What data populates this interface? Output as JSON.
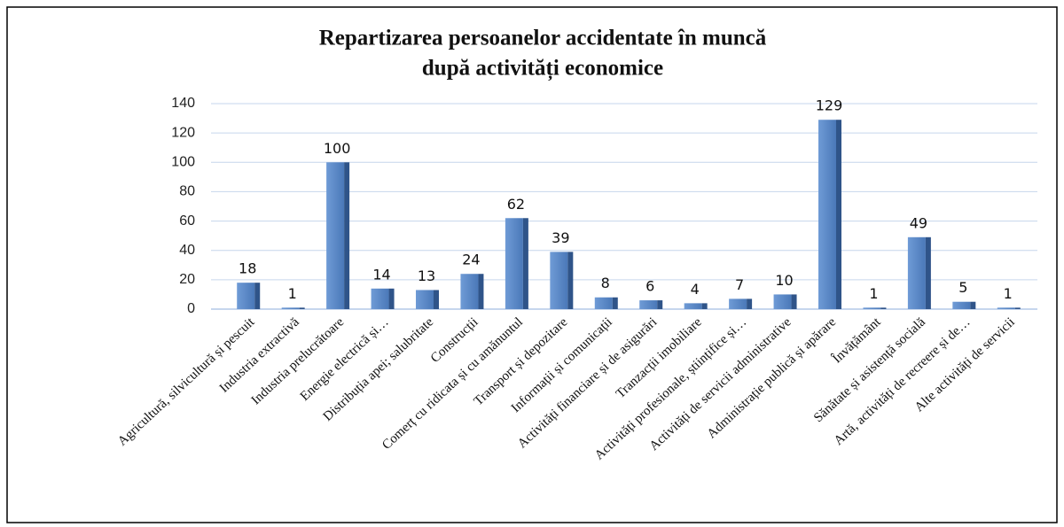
{
  "chart_data": {
    "type": "bar",
    "title": [
      "Repartizarea persoanelor accidentate în muncă",
      "după activități economice"
    ],
    "categories": [
      "Agricultură, silvicultură și pescuit",
      "Industria extractivă",
      "Industria prelucrătoare",
      "Energie electrică și…",
      "Distribuția apei; salubritate",
      "Construcții",
      "Comerț cu ridicata și cu amănuntul",
      "Transport și depozitare",
      "Informații și comunicații",
      "Activități financiare și de asigurări",
      "Tranzacții imobiliare",
      "Activități profesionale, științifice și…",
      "Activități de servicii administrative",
      "Administrație publică și apărare",
      "Învățământ",
      "Sănătate și asistență socială",
      "Artă, activități de recreere și de…",
      "Alte activități de servicii"
    ],
    "values": [
      18,
      1,
      100,
      14,
      13,
      24,
      62,
      39,
      8,
      6,
      4,
      7,
      10,
      129,
      1,
      49,
      5,
      1
    ],
    "color": "#4f81bd",
    "ylim": [
      0,
      140
    ],
    "yticks": [
      0,
      20,
      40,
      60,
      80,
      100,
      120,
      140
    ],
    "grid": true
  }
}
